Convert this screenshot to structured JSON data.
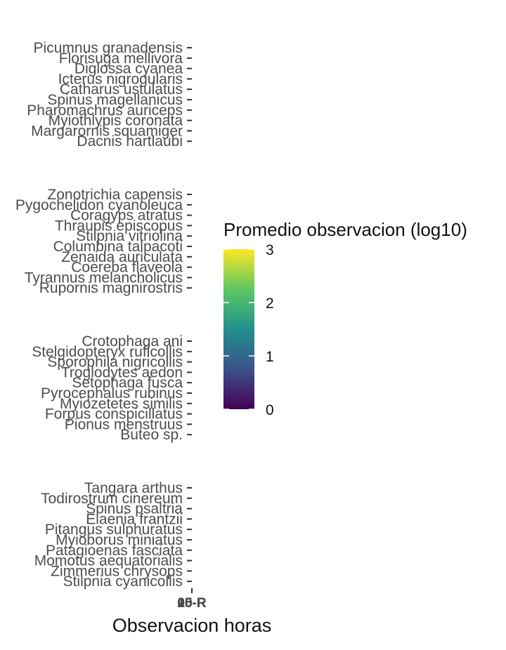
{
  "chart_data": {
    "type": "heatmap",
    "title": "",
    "xlabel": "Observacion horas",
    "ylabel": "",
    "x_tick_labels": [
      "00-R",
      "05-R",
      "10-R",
      "15-R",
      "20-R"
    ],
    "legend": {
      "title": "Promedio  observacion (log10)",
      "position": "right",
      "scale": "viridis",
      "range": [
        0,
        3
      ],
      "ticks": [
        0,
        1,
        2,
        3
      ],
      "colors": [
        "#440154",
        "#3b528b",
        "#21908c",
        "#5dc863",
        "#fde725"
      ]
    },
    "grid": false,
    "facets": [
      {
        "species": [
          "Picumnus granadensis",
          "Florisuga mellivora",
          "Diglossa cyanea",
          "Icterus nigrogularis",
          "Catharus ustulatus",
          "Spinus magellanicus",
          "Pharomachrus auriceps",
          "Myiothlypis coronata",
          "Margarornis squamiger",
          "Dacnis hartlaubi"
        ]
      },
      {
        "species": [
          "Zonotrichia capensis",
          "Pygochelidon cyanoleuca",
          "Coragyps atratus",
          "Thraupis episcopus",
          "Stilpnia vitriolina",
          "Columbina talpacoti",
          "Zenaida auriculata",
          "Coereba flaveola",
          "Tyrannus melancholicus",
          "Rupornis magnirostris"
        ]
      },
      {
        "species": [
          "Crotophaga ani",
          "Stelgidopteryx ruficollis",
          "Sporophila nigricollis",
          "Troglodytes aedon",
          "Setophaga fusca",
          "Pyrocephalus rubinus",
          "Myiozetetes similis",
          "Forpus conspicillatus",
          "Pionus menstruus",
          "Buteo sp."
        ]
      },
      {
        "species": [
          "Tangara arthus",
          "Todirostrum cinereum",
          "Spinus psaltria",
          "Elaenia frantzii",
          "Pitangus sulphuratus",
          "Myioborus miniatus",
          "Patagioenas fasciata",
          "Momotus aequatorialis",
          "Zimmerius chrysops",
          "Stilpnia cyanicollis"
        ]
      }
    ]
  }
}
